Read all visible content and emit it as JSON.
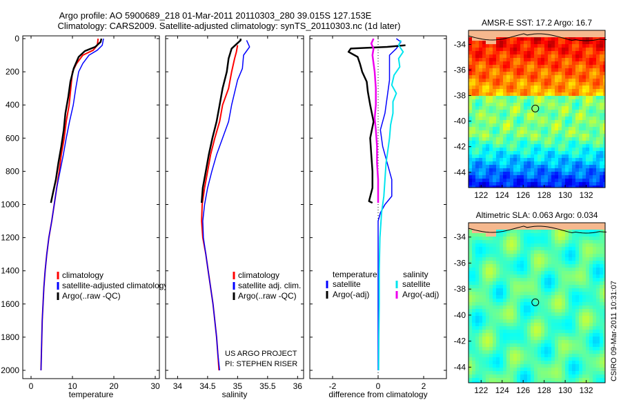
{
  "title": {
    "line1": "Argo profile: AO 5900689_218 01-Mar-2011 20110303_280 39.015S 127.153E",
    "line2": "Climatology: CARS2009. Satellite-adjusted climatology: synTS_20110303.nc (1d later)"
  },
  "credit": [
    "US ARGO PROJECT",
    "PI: STEPHEN RISER"
  ],
  "timestamp": "CSIRO 09-Mar-2011 10:31:07",
  "colors": {
    "red": "#ff0000",
    "blue": "#0000ff",
    "black": "#000000",
    "cyan": "#00e5ee",
    "magenta": "#ee00ee",
    "land": "#f5b88e"
  },
  "chart_data": [
    {
      "type": "line",
      "name": "temperature",
      "xlabel": "temperature",
      "ylabel": "",
      "xlim": [
        -2,
        31
      ],
      "ylim": [
        2050,
        0
      ],
      "xticks": [
        0,
        10,
        20,
        30
      ],
      "yticks": [
        0,
        200,
        400,
        600,
        800,
        1000,
        1200,
        1400,
        1600,
        1800,
        2000
      ],
      "legend": [
        "climatology",
        "satellite-adjusted climatology",
        "Argo(..raw -QC)"
      ],
      "legend_position": "lower-right",
      "series": [
        {
          "label_key": 0,
          "color": "red",
          "width": 2,
          "points": [
            [
              16.2,
              0
            ],
            [
              16,
              40
            ],
            [
              15,
              70
            ],
            [
              12.5,
              100
            ],
            [
              11,
              150
            ],
            [
              10,
              200
            ],
            [
              9.6,
              300
            ],
            [
              9.2,
              400
            ],
            [
              8.5,
              500
            ],
            [
              8,
              600
            ],
            [
              7.3,
              700
            ],
            [
              6.8,
              800
            ],
            [
              6.2,
              900
            ],
            [
              5.6,
              1000
            ],
            [
              5,
              1100
            ],
            [
              4.3,
              1200
            ],
            [
              3.8,
              1300
            ],
            [
              3.4,
              1400
            ],
            [
              3.1,
              1500
            ],
            [
              2.9,
              1600
            ],
            [
              2.7,
              1700
            ],
            [
              2.6,
              1800
            ],
            [
              2.5,
              1900
            ],
            [
              2.4,
              2000
            ]
          ]
        },
        {
          "label_key": 1,
          "color": "blue",
          "width": 1.5,
          "points": [
            [
              17.5,
              0
            ],
            [
              17.2,
              40
            ],
            [
              16,
              70
            ],
            [
              14,
              100
            ],
            [
              12.5,
              150
            ],
            [
              11.5,
              200
            ],
            [
              10.8,
              300
            ],
            [
              10.2,
              400
            ],
            [
              9.3,
              500
            ],
            [
              8.5,
              600
            ],
            [
              7.8,
              700
            ],
            [
              7,
              800
            ],
            [
              6.2,
              900
            ],
            [
              5.6,
              1000
            ],
            [
              5,
              1100
            ],
            [
              4.3,
              1200
            ],
            [
              3.8,
              1300
            ],
            [
              3.4,
              1400
            ],
            [
              3.1,
              1500
            ],
            [
              2.9,
              1600
            ],
            [
              2.7,
              1700
            ],
            [
              2.6,
              1800
            ],
            [
              2.5,
              1900
            ],
            [
              2.4,
              2000
            ]
          ]
        },
        {
          "label_key": 2,
          "color": "black",
          "width": 2.5,
          "points": [
            [
              17,
              0
            ],
            [
              16.8,
              20
            ],
            [
              15.5,
              50
            ],
            [
              13,
              75
            ],
            [
              11.5,
              110
            ],
            [
              10.3,
              180
            ],
            [
              9.5,
              260
            ],
            [
              9,
              350
            ],
            [
              8.3,
              450
            ],
            [
              7.9,
              550
            ],
            [
              7.3,
              650
            ],
            [
              6.6,
              750
            ],
            [
              6,
              850
            ],
            [
              5.3,
              930
            ],
            [
              4.8,
              990
            ]
          ]
        }
      ]
    },
    {
      "type": "line",
      "name": "salinity",
      "xlabel": "salinity",
      "ylabel": "",
      "xlim": [
        33.8,
        36.1
      ],
      "ylim": [
        2050,
        0
      ],
      "xticks": [
        34,
        34.5,
        35,
        35.5,
        36
      ],
      "legend": [
        "climatology",
        "satellite adj. clim.",
        "Argo(..raw -QC)"
      ],
      "legend_position": "lower-right",
      "series": [
        {
          "label_key": 0,
          "color": "red",
          "width": 2,
          "points": [
            [
              35,
              40
            ],
            [
              34.98,
              80
            ],
            [
              34.95,
              120
            ],
            [
              34.9,
              200
            ],
            [
              34.85,
              300
            ],
            [
              34.75,
              400
            ],
            [
              34.7,
              500
            ],
            [
              34.62,
              600
            ],
            [
              34.55,
              700
            ],
            [
              34.5,
              800
            ],
            [
              34.45,
              900
            ],
            [
              34.41,
              1000
            ],
            [
              34.4,
              1100
            ],
            [
              34.42,
              1200
            ],
            [
              34.47,
              1300
            ],
            [
              34.51,
              1400
            ],
            [
              34.55,
              1500
            ],
            [
              34.59,
              1600
            ],
            [
              34.62,
              1700
            ],
            [
              34.65,
              1800
            ],
            [
              34.67,
              1900
            ],
            [
              34.69,
              2000
            ]
          ]
        },
        {
          "label_key": 1,
          "color": "blue",
          "width": 1.5,
          "points": [
            [
              35.15,
              10
            ],
            [
              35.2,
              50
            ],
            [
              35.1,
              100
            ],
            [
              35.08,
              180
            ],
            [
              35,
              250
            ],
            [
              34.9,
              400
            ],
            [
              34.85,
              500
            ],
            [
              34.75,
              600
            ],
            [
              34.65,
              700
            ],
            [
              34.57,
              800
            ],
            [
              34.5,
              900
            ],
            [
              34.45,
              1000
            ],
            [
              34.42,
              1100
            ],
            [
              34.43,
              1200
            ],
            [
              34.47,
              1300
            ],
            [
              34.51,
              1400
            ],
            [
              34.55,
              1500
            ],
            [
              34.59,
              1600
            ],
            [
              34.62,
              1700
            ],
            [
              34.65,
              1800
            ],
            [
              34.67,
              1900
            ],
            [
              34.7,
              2000
            ]
          ]
        },
        {
          "label_key": 2,
          "color": "black",
          "width": 2.5,
          "points": [
            [
              35.05,
              0
            ],
            [
              35.05,
              10
            ],
            [
              34.9,
              60
            ],
            [
              34.85,
              120
            ],
            [
              34.82,
              200
            ],
            [
              34.75,
              300
            ],
            [
              34.7,
              400
            ],
            [
              34.65,
              500
            ],
            [
              34.58,
              600
            ],
            [
              34.52,
              700
            ],
            [
              34.47,
              800
            ],
            [
              34.42,
              900
            ],
            [
              34.4,
              990
            ]
          ]
        }
      ]
    },
    {
      "type": "line",
      "name": "difference",
      "xlabel": "difference from climatology",
      "ylabel": "",
      "xlim": [
        -3,
        3
      ],
      "ylim": [
        2050,
        0
      ],
      "xticks": [
        -2,
        0,
        2
      ],
      "legend": {
        "temperature_heading": "temperature",
        "salinity_heading": "salinity",
        "temperature_items": [
          "satellite",
          "Argo(-adj)"
        ],
        "salinity_items": [
          "satellite",
          "Argo(-adj)"
        ]
      },
      "legend_position": "lower-left",
      "series": [
        {
          "color": "blue",
          "width": 1.5,
          "points": [
            [
              0.8,
              0
            ],
            [
              1,
              20
            ],
            [
              0.8,
              60
            ],
            [
              0.5,
              100
            ],
            [
              0.5,
              150
            ],
            [
              0.5,
              250
            ],
            [
              0.4,
              350
            ],
            [
              0.3,
              450
            ],
            [
              0.1,
              550
            ],
            [
              0.2,
              650
            ],
            [
              0.4,
              750
            ],
            [
              0.6,
              850
            ],
            [
              0.6,
              950
            ],
            [
              0.3,
              1000
            ],
            [
              0.1,
              1050
            ],
            [
              0,
              1100
            ],
            [
              0,
              2000
            ]
          ]
        },
        {
          "color": "black",
          "width": 2.5,
          "points": [
            [
              1.2,
              40
            ],
            [
              0.4,
              50
            ],
            [
              -1.2,
              60
            ],
            [
              -1.3,
              80
            ],
            [
              -0.9,
              110
            ],
            [
              -0.8,
              150
            ],
            [
              -0.7,
              200
            ],
            [
              -0.5,
              260
            ],
            [
              -0.45,
              320
            ],
            [
              -0.35,
              400
            ],
            [
              -0.2,
              500
            ],
            [
              -0.35,
              600
            ],
            [
              -0.3,
              700
            ],
            [
              -0.25,
              800
            ],
            [
              -0.25,
              900
            ],
            [
              -0.4,
              980
            ],
            [
              -0.25,
              990
            ]
          ]
        },
        {
          "color": "cyan",
          "width": 2,
          "points": [
            [
              1,
              10
            ],
            [
              0.9,
              40
            ],
            [
              1.1,
              80
            ],
            [
              0.9,
              120
            ],
            [
              0.95,
              170
            ],
            [
              0.7,
              220
            ],
            [
              0.6,
              280
            ],
            [
              0.8,
              330
            ],
            [
              0.65,
              380
            ],
            [
              0.65,
              450
            ],
            [
              0.55,
              520
            ],
            [
              0.5,
              600
            ],
            [
              0.45,
              650
            ],
            [
              0.35,
              750
            ],
            [
              0.3,
              850
            ],
            [
              0.25,
              950
            ],
            [
              0.15,
              1050
            ],
            [
              0.08,
              1200
            ],
            [
              0.05,
              1400
            ],
            [
              0.05,
              1600
            ],
            [
              0.03,
              1800
            ],
            [
              0.02,
              2000
            ]
          ]
        },
        {
          "color": "magenta",
          "width": 2.5,
          "points": [
            [
              -0.2,
              0
            ],
            [
              -0.3,
              30
            ],
            [
              -0.2,
              60
            ],
            [
              -0.25,
              100
            ],
            [
              -0.15,
              200
            ],
            [
              -0.1,
              300
            ],
            [
              -0.1,
              400
            ],
            [
              -0.15,
              480
            ],
            [
              -0.1,
              550
            ],
            [
              -0.05,
              650
            ],
            [
              -0.05,
              750
            ],
            [
              0,
              850
            ],
            [
              0,
              950
            ],
            [
              0,
              990
            ]
          ]
        }
      ]
    },
    {
      "type": "heatmap",
      "name": "sst",
      "title": "AMSR-E SST: 17.2  Argo: 16.7",
      "xlim": [
        120.8,
        133.8
      ],
      "ylim": [
        -45.2,
        -32.9
      ],
      "xticks": [
        122,
        124,
        126,
        128,
        130,
        132
      ],
      "yticks": [
        -34,
        -36,
        -38,
        -40,
        -42,
        -44
      ],
      "colormap": "jet",
      "marker": [
        127.153,
        -39.015
      ]
    },
    {
      "type": "heatmap",
      "name": "sla",
      "title": "Altimetric SLA: 0.063  Argo: 0.034",
      "xlim": [
        120.8,
        133.8
      ],
      "ylim": [
        -45.2,
        -32.9
      ],
      "xticks": [
        122,
        124,
        126,
        128,
        130,
        132
      ],
      "yticks": [
        -34,
        -36,
        -38,
        -40,
        -42,
        -44
      ],
      "colormap": "jet",
      "marker": [
        127.153,
        -39.015
      ]
    }
  ]
}
